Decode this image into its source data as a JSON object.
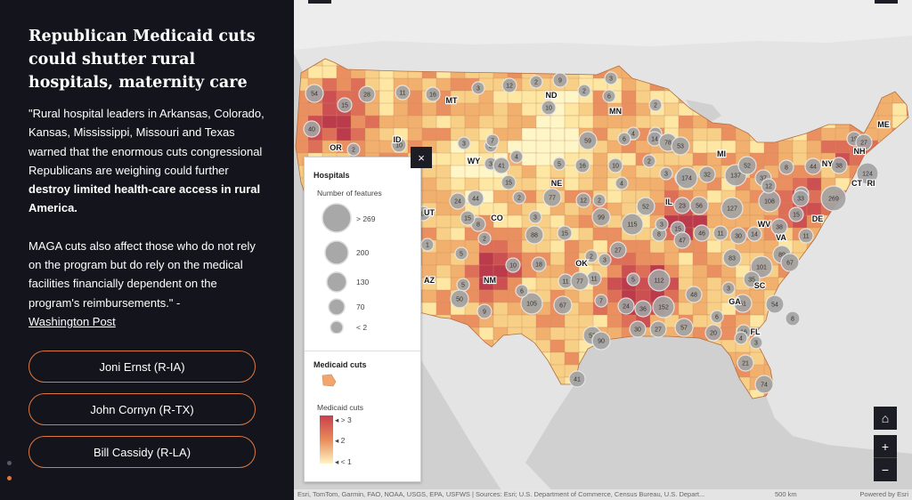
{
  "story": {
    "title": "Republican Medicaid cuts could shutter rural hospitals, maternity care",
    "quote_part1": "\"Rural hospital leaders in Arkansas, Colorado, Kansas, Mississippi, Missouri and Texas warned that the enormous cuts congressional Republicans are weighing could further ",
    "quote_bold": "destroy limited health-care access in rural America.",
    "para2": "MAGA cuts also affect those who do not rely on the program but do rely on the medical facilities financially dependent on the program's reimbursements.\" -",
    "source_link": "Washington Post",
    "buttons": [
      "Joni Ernst (R-IA)",
      "John Cornyn (R-TX)",
      "Bill Cassidy (R-LA)"
    ],
    "nav_dots": [
      "#555b66",
      "#e0773f"
    ]
  },
  "legend": {
    "layer1": "Hospitals",
    "size_title": "Number of features",
    "size_labels": [
      "> 269",
      "200",
      "130",
      "70",
      "< 2"
    ],
    "layer2": "Medicaid cuts",
    "ramp_title": "Medicaid cuts",
    "ramp_labels": [
      "> 3",
      "2",
      "< 1"
    ],
    "close": "×",
    "ramp_colors": [
      "#c8404c",
      "#e88a5a",
      "#fff4c2"
    ]
  },
  "map": {
    "state_labels": [
      "MT",
      "ND",
      "MN",
      "OR",
      "ID",
      "WY",
      "NE",
      "UT",
      "CO",
      "IL",
      "MI",
      "NY",
      "ME",
      "NH",
      "CT",
      "RI",
      "WV",
      "DE",
      "VA",
      "OK",
      "AZ",
      "NM",
      "SC",
      "GA",
      "FL"
    ],
    "cluster_counts": [
      "54",
      "15",
      "28",
      "40",
      "2",
      "11",
      "16",
      "3",
      "12",
      "2",
      "9",
      "10",
      "2",
      "3",
      "6",
      "2",
      "2",
      "14",
      "4",
      "78",
      "3",
      "12",
      "23",
      "53",
      "8",
      "44",
      "38",
      "19",
      "27",
      "124",
      "269",
      "174",
      "32",
      "137",
      "37",
      "108",
      "18",
      "52",
      "15",
      "8",
      "27",
      "4",
      "10",
      "2",
      "6",
      "10",
      "3",
      "3",
      "3",
      "41",
      "4",
      "15",
      "7",
      "5",
      "59",
      "16",
      "2",
      "2",
      "8",
      "15",
      "24",
      "44",
      "77",
      "12",
      "88",
      "3",
      "15",
      "99",
      "115",
      "3",
      "56",
      "127",
      "47",
      "46",
      "11",
      "30",
      "14",
      "15",
      "33",
      "38",
      "11",
      "12",
      "52",
      "89",
      "67",
      "83",
      "112",
      "3",
      "11",
      "2",
      "18",
      "11",
      "77",
      "7",
      "5",
      "36",
      "24",
      "152",
      "48",
      "3",
      "51",
      "54",
      "101",
      "35",
      "8",
      "20",
      "16",
      "6",
      "67",
      "105",
      "52",
      "90",
      "30",
      "27",
      "57",
      "4",
      "3",
      "21",
      "74",
      "41",
      "13",
      "1",
      "5",
      "50",
      "9",
      "6",
      "10",
      "2",
      "5",
      "11"
    ],
    "home": "⌂",
    "zoom_in": "+",
    "zoom_out": "−",
    "attribution": "Esri, TomTom, Garmin, FAO, NOAA, USGS, EPA, USFWS | Sources: Esri; U.S. Department of Commerce, Census Bureau, U.S. Depart...",
    "scale": "500 km",
    "powered": "Powered by Esri"
  }
}
